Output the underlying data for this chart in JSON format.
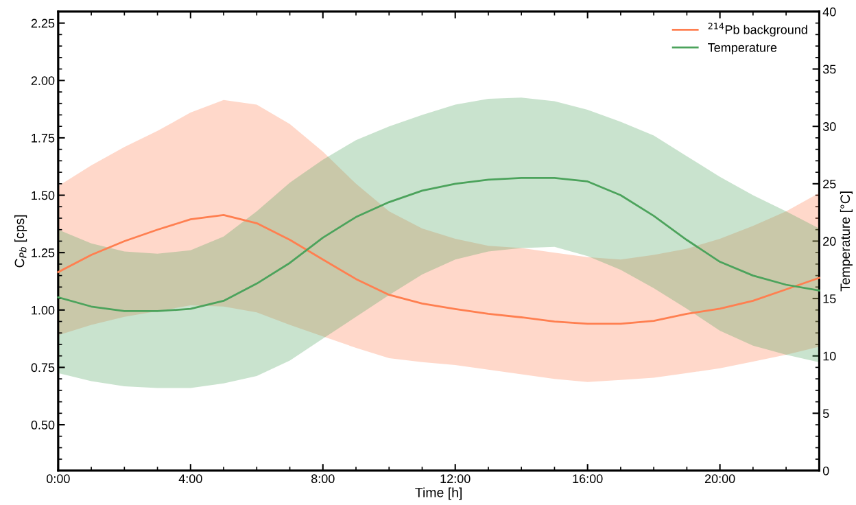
{
  "chart_data": {
    "type": "line",
    "xlabel": "Time [h]",
    "ylabel": "C$_{Pb}$ [cps]",
    "y2label": "Temperature [°C]",
    "x": [
      0,
      1,
      2,
      3,
      4,
      5,
      6,
      7,
      8,
      9,
      10,
      11,
      12,
      13,
      14,
      15,
      16,
      17,
      18,
      19,
      20,
      21,
      22,
      23
    ],
    "xlim": [
      0,
      23
    ],
    "xticks": [
      {
        "value": 0,
        "label": "0:00"
      },
      {
        "value": 4,
        "label": "4:00"
      },
      {
        "value": 8,
        "label": "8:00"
      },
      {
        "value": 12,
        "label": "12:00"
      },
      {
        "value": 16,
        "label": "16:00"
      },
      {
        "value": 20,
        "label": "20:00"
      }
    ],
    "ylim": [
      0.3,
      2.3
    ],
    "yticks": [
      {
        "value": 0.5,
        "label": "0.50"
      },
      0.75,
      {
        "value": 1.0,
        "label": "1.00"
      },
      1.25,
      {
        "value": 1.5,
        "label": "1.50"
      },
      1.75,
      {
        "value": 2.0,
        "label": "2.00"
      },
      2.25
    ],
    "y2lim": [
      0,
      40
    ],
    "y2ticks": [
      0,
      5,
      10,
      15,
      20,
      25,
      30,
      35,
      40
    ],
    "legend": "top right",
    "grid": false,
    "series": [
      {
        "name": "$^{214}$Pb background",
        "color": "#ff7f50",
        "axis": "y",
        "values": [
          1.165,
          1.24,
          1.3,
          1.35,
          1.395,
          1.414,
          1.378,
          1.306,
          1.22,
          1.135,
          1.066,
          1.028,
          1.004,
          0.983,
          0.968,
          0.95,
          0.94,
          0.94,
          0.953,
          0.983,
          1.006,
          1.04,
          1.09,
          1.14
        ],
        "upper": [
          1.54,
          1.63,
          1.71,
          1.78,
          1.86,
          1.915,
          1.895,
          1.81,
          1.69,
          1.55,
          1.43,
          1.355,
          1.31,
          1.28,
          1.27,
          1.25,
          1.23,
          1.22,
          1.24,
          1.267,
          1.31,
          1.366,
          1.43,
          1.51
        ],
        "lower": [
          0.89,
          0.935,
          0.97,
          0.995,
          1.02,
          1.015,
          0.99,
          0.935,
          0.885,
          0.835,
          0.79,
          0.773,
          0.76,
          0.74,
          0.72,
          0.7,
          0.686,
          0.695,
          0.705,
          0.725,
          0.746,
          0.775,
          0.805,
          0.84
        ]
      },
      {
        "name": "Temperature",
        "color": "#4ca35c",
        "axis": "y2",
        "values": [
          15.1,
          14.3,
          13.9,
          13.9,
          14.1,
          14.8,
          16.3,
          18.1,
          20.3,
          22.1,
          23.4,
          24.4,
          25.0,
          25.35,
          25.5,
          25.5,
          25.2,
          24.0,
          22.2,
          20.1,
          18.2,
          17.0,
          16.2,
          15.7
        ],
        "upper": [
          21.0,
          19.8,
          19.1,
          18.9,
          19.2,
          20.4,
          22.6,
          25.1,
          27.1,
          28.8,
          30.0,
          31.0,
          31.9,
          32.4,
          32.5,
          32.2,
          31.45,
          30.4,
          29.2,
          27.4,
          25.6,
          24.0,
          22.6,
          21.1
        ],
        "lower": [
          8.5,
          7.8,
          7.35,
          7.2,
          7.2,
          7.6,
          8.25,
          9.6,
          11.5,
          13.4,
          15.3,
          17.1,
          18.4,
          19.1,
          19.4,
          19.5,
          18.7,
          17.5,
          15.9,
          14.1,
          12.2,
          10.9,
          10.1,
          9.45
        ]
      }
    ]
  }
}
